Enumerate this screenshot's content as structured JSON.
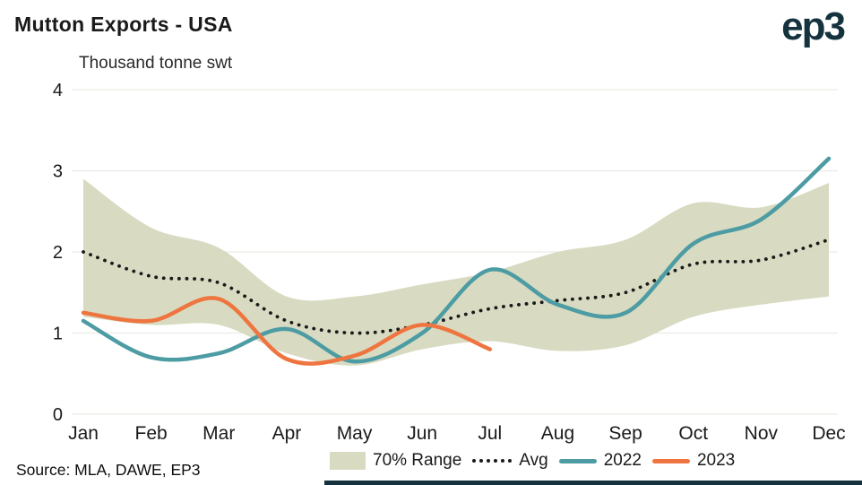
{
  "header": {
    "title": "Mutton Exports - USA",
    "logo": "ep3"
  },
  "chart_data": {
    "type": "line",
    "title": "Mutton Exports - USA",
    "unit_label": "Thousand tonne swt",
    "categories": [
      "Jan",
      "Feb",
      "Mar",
      "Apr",
      "May",
      "Jun",
      "Jul",
      "Aug",
      "Sep",
      "Oct",
      "Nov",
      "Dec"
    ],
    "ylim": [
      0,
      4
    ],
    "yticks": [
      0,
      1,
      2,
      3,
      4
    ],
    "grid": "horizontal",
    "legend_position": "bottom",
    "band": {
      "name": "70% Range",
      "color": "#d8dbc1",
      "upper": [
        2.9,
        2.3,
        2.05,
        1.45,
        1.45,
        1.6,
        1.75,
        2.0,
        2.15,
        2.6,
        2.55,
        2.85
      ],
      "lower": [
        1.2,
        1.1,
        1.1,
        0.75,
        0.6,
        0.8,
        0.9,
        0.78,
        0.85,
        1.2,
        1.35,
        1.45
      ]
    },
    "series": [
      {
        "name": "Avg",
        "style": "dotted",
        "color": "#1a1a1a",
        "values": [
          2.0,
          1.7,
          1.62,
          1.15,
          1.0,
          1.1,
          1.3,
          1.4,
          1.5,
          1.85,
          1.9,
          2.15
        ]
      },
      {
        "name": "2022",
        "style": "solid",
        "color": "#4d9ca4",
        "values": [
          1.15,
          0.7,
          0.75,
          1.05,
          0.65,
          1.0,
          1.78,
          1.35,
          1.25,
          2.1,
          2.4,
          3.15
        ]
      },
      {
        "name": "2023",
        "style": "solid",
        "color": "#ef7540",
        "values": [
          1.25,
          1.15,
          1.42,
          0.68,
          0.72,
          1.1,
          0.8
        ]
      }
    ],
    "colors": {
      "grid": "#e9e9e4"
    }
  },
  "footer": {
    "source": "Source: MLA, DAWE, EP3",
    "bar_color": "#15333e"
  }
}
